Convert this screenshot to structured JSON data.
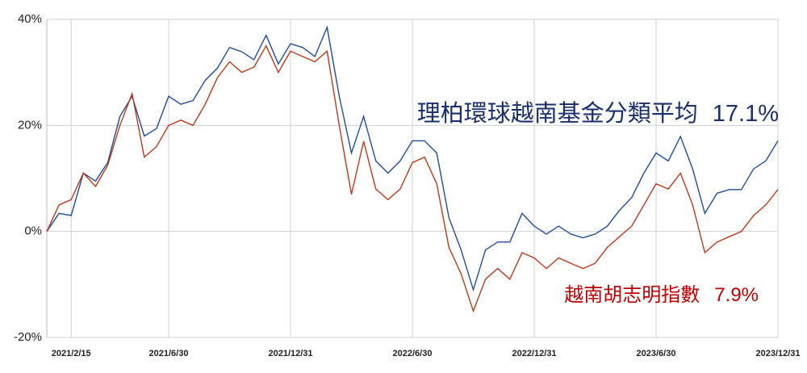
{
  "chart_data": {
    "type": "line",
    "categories": [
      null,
      null,
      "2021/2/15",
      null,
      null,
      null,
      null,
      null,
      null,
      null,
      "2021/6/30",
      null,
      null,
      null,
      null,
      null,
      null,
      null,
      null,
      null,
      "2021/12/31",
      null,
      null,
      null,
      null,
      null,
      null,
      null,
      null,
      null,
      "2022/6/30",
      null,
      null,
      null,
      null,
      null,
      null,
      null,
      null,
      null,
      "2022/12/31",
      null,
      null,
      null,
      null,
      null,
      null,
      null,
      null,
      null,
      "2023/6/30",
      null,
      null,
      null,
      null,
      null,
      null,
      null,
      null,
      null,
      "2023/12/31"
    ],
    "ylim": [
      -20,
      40
    ],
    "yticks": [
      {
        "value": -20,
        "label": "-20%"
      },
      {
        "value": 0,
        "label": "0%"
      },
      {
        "value": 20,
        "label": "20%"
      },
      {
        "value": 40,
        "label": "40%"
      }
    ],
    "grid": true,
    "series": [
      {
        "name": "理柏環球越南基金分類平均",
        "color": "#1f4e9c",
        "label_color": "#1a2f6e",
        "values": [
          0,
          3.4,
          3,
          11,
          9.5,
          13,
          21.7,
          25.5,
          18,
          19.4,
          25.5,
          24,
          24.7,
          28.5,
          30.8,
          34.7,
          33.9,
          32.4,
          37,
          31.6,
          35.4,
          34.7,
          33,
          38.5,
          25.5,
          14.8,
          21.7,
          13.3,
          11,
          13.3,
          17.1,
          17.1,
          14.8,
          2.6,
          -3.5,
          -11,
          -3.5,
          -2,
          -2,
          3.4,
          1,
          -0.5,
          1,
          -0.5,
          -1.2,
          -0.5,
          1,
          4,
          6.4,
          11,
          14.8,
          13.3,
          17.9,
          11.8,
          3.4,
          7.2,
          7.9,
          7.9,
          11.8,
          13.3,
          17.1
        ],
        "value_labels": [
          null,
          null,
          null,
          null,
          null,
          null,
          null,
          null,
          null,
          null,
          null,
          null,
          null,
          null,
          null,
          null,
          null,
          null,
          null,
          null,
          null,
          null,
          null,
          null,
          null,
          null,
          null,
          null,
          null,
          null,
          null,
          null,
          null,
          null,
          null,
          null,
          null,
          null,
          null,
          null,
          null,
          null,
          null,
          null,
          null,
          null,
          null,
          null,
          null,
          null,
          null,
          null,
          null,
          null,
          null,
          null,
          null,
          null,
          null,
          null,
          "17.1%"
        ]
      },
      {
        "name": "越南胡志明指數",
        "color": "#c0391b",
        "label_color": "#c00000",
        "values": [
          0,
          5,
          6,
          11,
          8.5,
          12.5,
          20,
          26,
          14,
          16,
          20,
          21,
          20,
          24,
          29,
          32,
          30,
          31,
          35,
          30,
          34,
          33,
          32,
          34,
          20,
          7,
          17,
          8,
          6,
          8,
          13,
          14,
          9,
          -3,
          -8,
          -15,
          -9,
          -7,
          -9,
          -4,
          -5,
          -7,
          -5,
          -6,
          -7,
          -6,
          -3,
          -1,
          1,
          5,
          9,
          8,
          11,
          5,
          -4,
          -2,
          -1,
          0,
          3,
          5,
          7.9
        ],
        "value_labels": [
          null,
          null,
          null,
          null,
          null,
          null,
          null,
          null,
          null,
          null,
          null,
          null,
          null,
          null,
          null,
          null,
          null,
          null,
          null,
          null,
          null,
          null,
          null,
          null,
          null,
          null,
          null,
          null,
          null,
          null,
          null,
          null,
          null,
          null,
          null,
          null,
          null,
          null,
          null,
          null,
          null,
          null,
          null,
          null,
          null,
          null,
          null,
          null,
          null,
          null,
          null,
          null,
          null,
          null,
          null,
          null,
          null,
          null,
          null,
          null,
          "7.9%"
        ]
      }
    ]
  }
}
